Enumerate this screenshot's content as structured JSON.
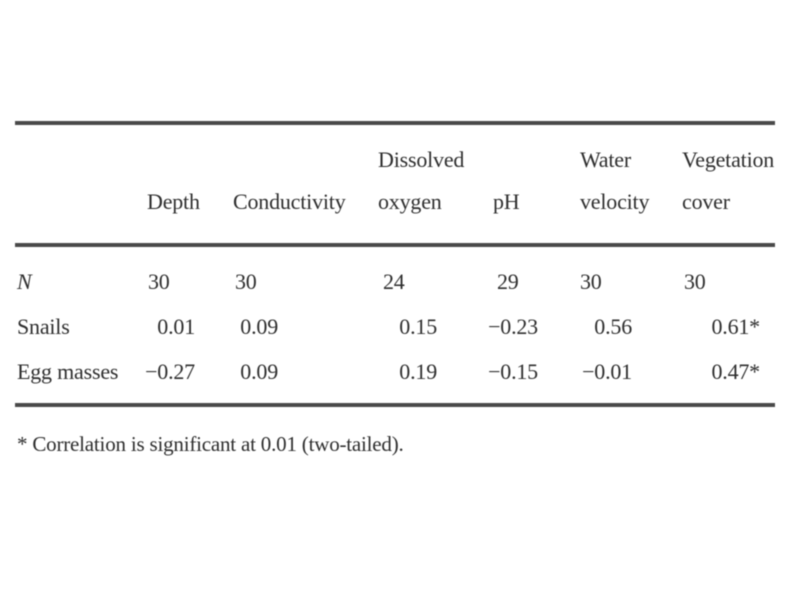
{
  "table": {
    "header": {
      "depth": "Depth",
      "conductivity": "Conductivity",
      "dissolved_oxygen": [
        "Dissolved",
        "oxygen"
      ],
      "ph": "pH",
      "water_velocity": [
        "Water",
        "velocity"
      ],
      "vegetation_cover": [
        "Vegetation",
        "cover"
      ]
    },
    "rows": [
      {
        "label": "N",
        "values": [
          "30",
          "30",
          "24",
          "29",
          "30",
          "30"
        ]
      },
      {
        "label": "Snails",
        "values": [
          "0.01",
          "0.09",
          "0.15",
          "−0.23",
          "0.56",
          "0.61*"
        ]
      },
      {
        "label": "Egg masses",
        "values": [
          "−0.27",
          "0.09",
          "0.19",
          "−0.15",
          "−0.01",
          "0.47*"
        ]
      }
    ],
    "footnote": "* Correlation is significant at 0.01 (two-tailed)."
  }
}
